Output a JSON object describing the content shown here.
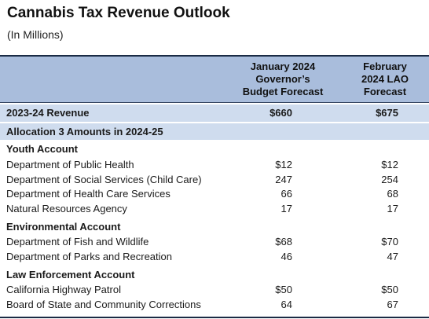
{
  "title": "Cannabis Tax Revenue Outlook",
  "subtitle": "(In Millions)",
  "columns": {
    "col1": [
      "January 2024",
      "Governor’s",
      "Budget Forecast"
    ],
    "col2": [
      "February",
      "2024 LAO",
      "Forecast"
    ]
  },
  "revenue": {
    "label": "2023-24 Revenue",
    "col1": "$660",
    "col2": "$675"
  },
  "allocation_label": "Allocation 3 Amounts in 2024-25",
  "sections": [
    {
      "title": "Youth Account",
      "rows": [
        {
          "name": "Department of Public Health",
          "col1": "$12",
          "col2": "$12"
        },
        {
          "name": "Department of Social Services (Child Care)",
          "col1": "247",
          "col2": "254"
        },
        {
          "name": "Department of Health Care Services",
          "col1": "66",
          "col2": "68"
        },
        {
          "name": "Natural Resources Agency",
          "col1": "17",
          "col2": "17"
        }
      ]
    },
    {
      "title": "Environmental Account",
      "rows": [
        {
          "name": "Department of Fish and Wildlife",
          "col1": "$68",
          "col2": "$70"
        },
        {
          "name": "Department of Parks and Recreation",
          "col1": "46",
          "col2": "47"
        }
      ]
    },
    {
      "title": "Law Enforcement Account",
      "rows": [
        {
          "name": "California Highway Patrol",
          "col1": "$50",
          "col2": "$50"
        },
        {
          "name": "Board of State and Community Corrections",
          "col1": "64",
          "col2": "67"
        }
      ]
    }
  ]
}
